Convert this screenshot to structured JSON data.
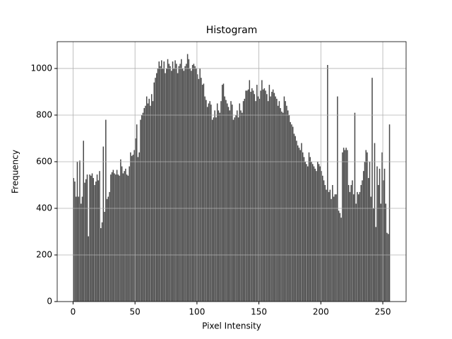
{
  "chart_data": {
    "type": "histogram",
    "title": "Histogram",
    "xlabel": "Pixel Intensity",
    "ylabel": "Frequency",
    "bins": [
      0,
      1,
      2,
      3,
      4,
      5,
      6,
      7,
      8,
      9,
      10,
      11,
      12,
      13,
      14,
      15,
      16,
      17,
      18,
      19,
      20,
      21,
      22,
      23,
      24,
      25,
      26,
      27,
      28,
      29,
      30,
      31,
      32,
      33,
      34,
      35,
      36,
      37,
      38,
      39,
      40,
      41,
      42,
      43,
      44,
      45,
      46,
      47,
      48,
      49,
      50,
      51,
      52,
      53,
      54,
      55,
      56,
      57,
      58,
      59,
      60,
      61,
      62,
      63,
      64,
      65,
      66,
      67,
      68,
      69,
      70,
      71,
      72,
      73,
      74,
      75,
      76,
      77,
      78,
      79,
      80,
      81,
      82,
      83,
      84,
      85,
      86,
      87,
      88,
      89,
      90,
      91,
      92,
      93,
      94,
      95,
      96,
      97,
      98,
      99,
      100,
      101,
      102,
      103,
      104,
      105,
      106,
      107,
      108,
      109,
      110,
      111,
      112,
      113,
      114,
      115,
      116,
      117,
      118,
      119,
      120,
      121,
      122,
      123,
      124,
      125,
      126,
      127,
      128,
      129,
      130,
      131,
      132,
      133,
      134,
      135,
      136,
      137,
      138,
      139,
      140,
      141,
      142,
      143,
      144,
      145,
      146,
      147,
      148,
      149,
      150,
      151,
      152,
      153,
      154,
      155,
      156,
      157,
      158,
      159,
      160,
      161,
      162,
      163,
      164,
      165,
      166,
      167,
      168,
      169,
      170,
      171,
      172,
      173,
      174,
      175,
      176,
      177,
      178,
      179,
      180,
      181,
      182,
      183,
      184,
      185,
      186,
      187,
      188,
      189,
      190,
      191,
      192,
      193,
      194,
      195,
      196,
      197,
      198,
      199,
      200,
      201,
      202,
      203,
      204,
      205,
      206,
      207,
      208,
      209,
      210,
      211,
      212,
      213,
      214,
      215,
      216,
      217,
      218,
      219,
      220,
      221,
      222,
      223,
      224,
      225,
      226,
      227,
      228,
      229,
      230,
      231,
      232,
      233,
      234,
      235,
      236,
      237,
      238,
      239,
      240,
      241,
      242,
      243,
      244,
      245,
      246,
      247,
      248,
      249,
      250,
      251,
      252,
      253,
      254,
      255,
      256
    ],
    "values": [
      530,
      515,
      450,
      600,
      450,
      605,
      420,
      450,
      690,
      510,
      525,
      545,
      280,
      545,
      540,
      550,
      530,
      500,
      515,
      545,
      520,
      560,
      315,
      340,
      665,
      385,
      780,
      440,
      450,
      470,
      545,
      555,
      565,
      550,
      545,
      565,
      545,
      540,
      610,
      580,
      550,
      560,
      570,
      545,
      540,
      580,
      640,
      625,
      630,
      650,
      700,
      760,
      620,
      640,
      780,
      800,
      810,
      830,
      840,
      880,
      850,
      870,
      840,
      890,
      860,
      940,
      960,
      980,
      1000,
      1030,
      1010,
      1035,
      1000,
      1030,
      980,
      1000,
      1040,
      1020,
      1010,
      990,
      1030,
      1000,
      1035,
      1020,
      980,
      1010,
      1020,
      1040,
      1000,
      990,
      1010,
      1020,
      1062,
      1040,
      1000,
      990,
      1015,
      1020,
      1010,
      1000,
      975,
      955,
      1000,
      960,
      930,
      935,
      880,
      865,
      835,
      850,
      860,
      845,
      780,
      790,
      820,
      790,
      850,
      820,
      810,
      860,
      930,
      935,
      880,
      865,
      850,
      835,
      820,
      860,
      845,
      780,
      790,
      800,
      820,
      790,
      850,
      820,
      810,
      860,
      870,
      905,
      905,
      910,
      950,
      900,
      915,
      905,
      890,
      860,
      930,
      880,
      870,
      905,
      950,
      910,
      915,
      905,
      890,
      860,
      930,
      880,
      900,
      910,
      895,
      880,
      870,
      840,
      860,
      830,
      815,
      810,
      880,
      860,
      840,
      820,
      800,
      770,
      760,
      750,
      720,
      710,
      690,
      670,
      660,
      650,
      680,
      640,
      620,
      600,
      590,
      580,
      640,
      620,
      600,
      590,
      580,
      570,
      560,
      600,
      590,
      580,
      560,
      540,
      520,
      500,
      480,
      1015,
      470,
      480,
      440,
      500,
      450,
      460,
      460,
      880,
      390,
      380,
      360,
      640,
      660,
      650,
      660,
      650,
      500,
      470,
      500,
      520,
      460,
      810,
      420,
      470,
      460,
      470,
      500,
      520,
      560,
      600,
      650,
      640,
      530,
      600,
      450,
      960,
      400,
      680,
      320,
      580,
      500,
      570,
      420,
      640,
      520,
      570,
      420,
      295,
      290,
      760
    ],
    "color": "#474747",
    "xlim": [
      -12.8,
      268.8
    ],
    "xticks": [
      0,
      50,
      100,
      150,
      200,
      250
    ],
    "ylim": [
      0,
      1115
    ],
    "yticks": [
      0,
      200,
      400,
      600,
      800,
      1000
    ],
    "grid": true
  }
}
